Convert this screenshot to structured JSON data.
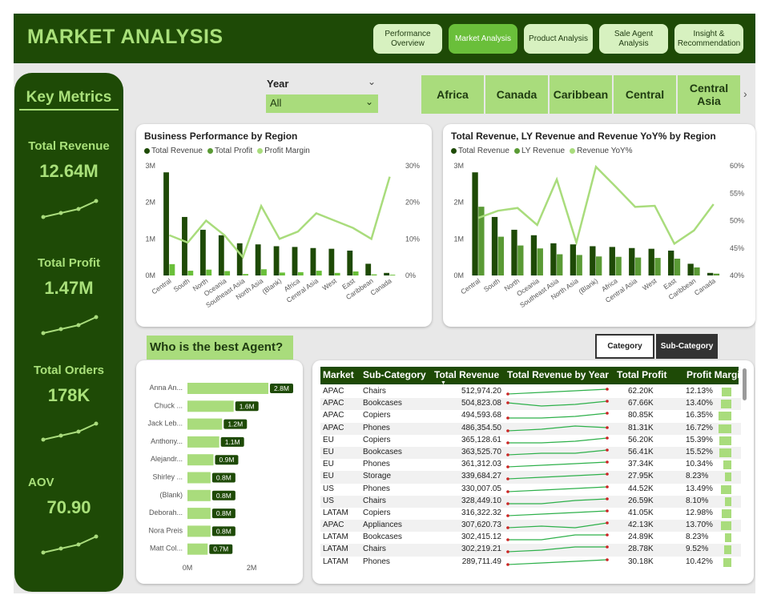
{
  "header": {
    "title": "MARKET ANALYSIS",
    "nav": [
      {
        "label": "Performance Overview",
        "active": false
      },
      {
        "label": "Market Analysis",
        "active": true
      },
      {
        "label": "Product Analysis",
        "active": false
      },
      {
        "label": "Sale Agent Analysis",
        "active": false
      },
      {
        "label": "Insight & Recommendation",
        "active": false
      }
    ]
  },
  "sidebar": {
    "title": "Key Metrics",
    "metrics": [
      {
        "label": "Total Revenue",
        "value": "12.64M"
      },
      {
        "label": "Total Profit",
        "value": "1.47M"
      },
      {
        "label": "Total Orders",
        "value": "178K"
      },
      {
        "label": "AOV",
        "value": "70.90"
      }
    ]
  },
  "filters": {
    "year_label": "Year",
    "year_value": "All",
    "regions": [
      "Africa",
      "Canada",
      "Caribbean",
      "Central",
      "Central Asia"
    ]
  },
  "colors": {
    "dark_green": "#1e4a06",
    "mid_green": "#5a9a35",
    "light_green": "#a9dc7c"
  },
  "chart_data": [
    {
      "type": "bar",
      "title": "Business Performance by Region",
      "categories": [
        "Central",
        "South",
        "North",
        "Oceania",
        "Southeast Asia",
        "North Asia",
        "(Blank)",
        "Africa",
        "Central Asia",
        "West",
        "East",
        "Caribbean",
        "Canada"
      ],
      "series": [
        {
          "name": "Total Revenue",
          "values": [
            2.82,
            1.6,
            1.25,
            1.1,
            0.88,
            0.85,
            0.8,
            0.78,
            0.75,
            0.73,
            0.68,
            0.32,
            0.07
          ]
        },
        {
          "name": "Total Profit",
          "values": [
            0.31,
            0.13,
            0.16,
            0.12,
            0.04,
            0.17,
            0.08,
            0.09,
            0.13,
            0.07,
            0.11,
            0.03,
            0.02
          ]
        },
        {
          "name": "Profit Margin",
          "values": [
            11,
            9,
            15,
            11,
            5,
            19,
            10,
            12,
            17,
            15,
            13,
            10,
            27
          ]
        }
      ],
      "y_ticks": [
        "0M",
        "1M",
        "2M",
        "3M"
      ],
      "y2_ticks": [
        "0%",
        "10%",
        "20%",
        "30%"
      ],
      "ylim": [
        0,
        3
      ],
      "y2lim": [
        0,
        30
      ]
    },
    {
      "type": "bar",
      "title": "Total Revenue, LY Revenue and Revenue YoY% by Region",
      "categories": [
        "Central",
        "South",
        "North",
        "Oceania",
        "Southeast Asia",
        "North Asia",
        "(Blank)",
        "Africa",
        "Central Asia",
        "West",
        "East",
        "Caribbean",
        "Canada"
      ],
      "series": [
        {
          "name": "Total Revenue",
          "values": [
            2.82,
            1.6,
            1.25,
            1.1,
            0.88,
            0.85,
            0.8,
            0.78,
            0.75,
            0.73,
            0.68,
            0.32,
            0.07
          ]
        },
        {
          "name": "LY Revenue",
          "values": [
            1.88,
            1.06,
            0.82,
            0.74,
            0.58,
            0.56,
            0.52,
            0.51,
            0.49,
            0.48,
            0.46,
            0.22,
            0.05
          ]
        },
        {
          "name": "Revenue YoY%",
          "values": [
            50.5,
            51.8,
            52.3,
            49.2,
            57.5,
            46.0,
            59.8,
            56.2,
            52.5,
            52.7,
            45.8,
            48.2,
            53.0
          ]
        }
      ],
      "y_ticks": [
        "0M",
        "1M",
        "2M",
        "3M"
      ],
      "y2_ticks": [
        "40%",
        "45%",
        "50%",
        "55%",
        "60%"
      ],
      "ylim": [
        0,
        3
      ],
      "y2lim": [
        40,
        60
      ]
    },
    {
      "type": "bar",
      "title": "Who is the best Agent?",
      "categories": [
        "Anna An...",
        "Chuck ...",
        "Jack Leb...",
        "Anthony...",
        "Alejandr...",
        "Shirley ...",
        "(Blank)",
        "Deborah...",
        "Nora Preis",
        "Matt Col..."
      ],
      "values": [
        2.8,
        1.6,
        1.2,
        1.1,
        0.9,
        0.8,
        0.8,
        0.8,
        0.8,
        0.7
      ],
      "value_labels": [
        "2.8M",
        "1.6M",
        "1.2M",
        "1.1M",
        "0.9M",
        "0.8M",
        "0.8M",
        "0.8M",
        "0.8M",
        "0.7M"
      ],
      "x_ticks": [
        "0M",
        "2M"
      ],
      "xlim": [
        0,
        2.8
      ]
    }
  ],
  "agent_title": "Who is the best Agent?",
  "toggles": {
    "category": "Category",
    "subcategory": "Sub-Category"
  },
  "table": {
    "headers": [
      "Market",
      "Sub-Category",
      "Total Revenue",
      "Total Revenue by Year",
      "Total Profit",
      "Profit Margin"
    ],
    "rows": [
      {
        "market": "APAC",
        "sub": "Chairs",
        "revenue": "512,974.20",
        "profit": "62.20K",
        "margin": "12.13%",
        "m": 12.13
      },
      {
        "market": "APAC",
        "sub": "Bookcases",
        "revenue": "504,823.08",
        "profit": "67.66K",
        "margin": "13.40%",
        "m": 13.4
      },
      {
        "market": "APAC",
        "sub": "Copiers",
        "revenue": "494,593.68",
        "profit": "80.85K",
        "margin": "16.35%",
        "m": 16.35
      },
      {
        "market": "APAC",
        "sub": "Phones",
        "revenue": "486,354.50",
        "profit": "81.31K",
        "margin": "16.72%",
        "m": 16.72
      },
      {
        "market": "EU",
        "sub": "Copiers",
        "revenue": "365,128.61",
        "profit": "56.20K",
        "margin": "15.39%",
        "m": 15.39
      },
      {
        "market": "EU",
        "sub": "Bookcases",
        "revenue": "363,525.70",
        "profit": "56.41K",
        "margin": "15.52%",
        "m": 15.52
      },
      {
        "market": "EU",
        "sub": "Phones",
        "revenue": "361,312.03",
        "profit": "37.34K",
        "margin": "10.34%",
        "m": 10.34
      },
      {
        "market": "EU",
        "sub": "Storage",
        "revenue": "339,684.27",
        "profit": "27.95K",
        "margin": "8.23%",
        "m": 8.23
      },
      {
        "market": "US",
        "sub": "Phones",
        "revenue": "330,007.05",
        "profit": "44.52K",
        "margin": "13.49%",
        "m": 13.49
      },
      {
        "market": "US",
        "sub": "Chairs",
        "revenue": "328,449.10",
        "profit": "26.59K",
        "margin": "8.10%",
        "m": 8.1
      },
      {
        "market": "LATAM",
        "sub": "Copiers",
        "revenue": "316,322.32",
        "profit": "41.05K",
        "margin": "12.98%",
        "m": 12.98
      },
      {
        "market": "APAC",
        "sub": "Appliances",
        "revenue": "307,620.73",
        "profit": "42.13K",
        "margin": "13.70%",
        "m": 13.7
      },
      {
        "market": "LATAM",
        "sub": "Bookcases",
        "revenue": "302,415.12",
        "profit": "24.89K",
        "margin": "8.23%",
        "m": 8.23
      },
      {
        "market": "LATAM",
        "sub": "Chairs",
        "revenue": "302,219.21",
        "profit": "28.78K",
        "margin": "9.52%",
        "m": 9.52
      },
      {
        "market": "LATAM",
        "sub": "Phones",
        "revenue": "289,711.49",
        "profit": "30.18K",
        "margin": "10.42%",
        "m": 10.42
      }
    ]
  }
}
